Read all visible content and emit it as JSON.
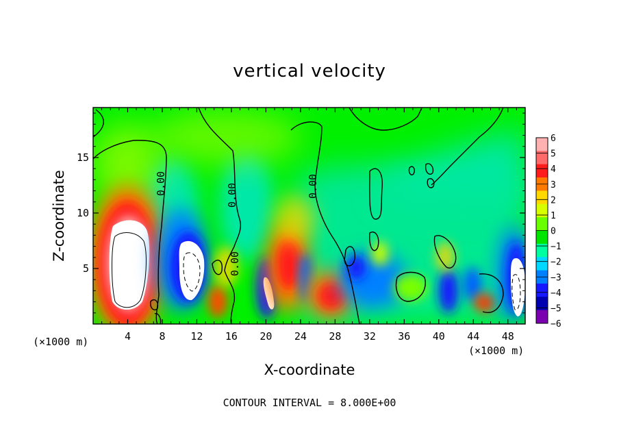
{
  "chart_data": {
    "type": "heatmap",
    "title": "vertical velocity",
    "xlabel": "X-coordinate",
    "ylabel": "Z-coordinate",
    "x_unit_left": "(×1000 m)",
    "x_unit_right": "(×1000 m)",
    "footer": "CONTOUR INTERVAL = 8.000E+00",
    "xlim": [
      0,
      50
    ],
    "ylim": [
      0,
      19.5
    ],
    "x_ticks": [
      4,
      8,
      12,
      16,
      20,
      24,
      28,
      32,
      36,
      40,
      44,
      48
    ],
    "y_ticks": [
      5,
      10,
      15
    ],
    "contour_labels": [
      "0.00",
      "0.00",
      "0.00",
      "0.00"
    ],
    "colorbar": {
      "range": [
        -6,
        6
      ],
      "labels": [
        "6",
        "5",
        "4",
        "3",
        "2",
        "1",
        "0",
        "−1",
        "−2",
        "−3",
        "−4",
        "−5",
        "−6"
      ],
      "colors": [
        "#ffb0b0",
        "#ff6a6a",
        "#ff1c1c",
        "#ff7a00",
        "#ffd800",
        "#d8ff00",
        "#6aff00",
        "#00e400",
        "#00ffa0",
        "#00d8ff",
        "#0080ff",
        "#1818ff",
        "#0000b0",
        "#7a00b0"
      ]
    },
    "features": [
      {
        "kind": "updraft",
        "x": 4.2,
        "z": 6.0,
        "peak": 6.5
      },
      {
        "kind": "downdraft",
        "x": 11.0,
        "z": 5.5,
        "peak": -6.5
      },
      {
        "kind": "updraft",
        "x": 14.5,
        "z": 2.5,
        "peak": 4.5
      },
      {
        "kind": "downdraft",
        "x": 20.2,
        "z": 3.0,
        "peak": -6.5
      },
      {
        "kind": "updraft",
        "x": 22.2,
        "z": 5.5,
        "peak": 5.0
      },
      {
        "kind": "updraft",
        "x": 27.0,
        "z": 3.0,
        "peak": 5.0
      },
      {
        "kind": "downdraft",
        "x": 33.0,
        "z": 4.0,
        "peak": -3.5
      },
      {
        "kind": "downdraft",
        "x": 40.5,
        "z": 3.0,
        "peak": -4.0
      },
      {
        "kind": "updraft",
        "x": 45.0,
        "z": 2.0,
        "peak": 4.0
      },
      {
        "kind": "downdraft",
        "x": 48.5,
        "z": 4.0,
        "peak": -6.5
      }
    ]
  }
}
